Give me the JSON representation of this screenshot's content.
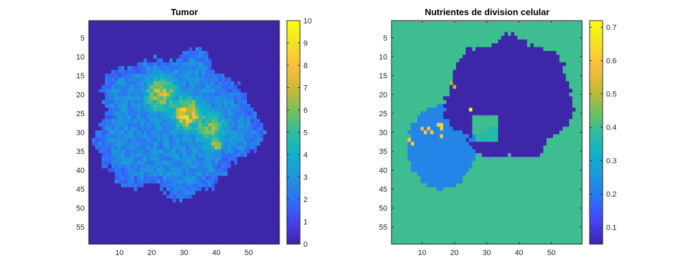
{
  "colors": {
    "background": "#ffffff",
    "axis": "#262626",
    "colormap": [
      "#3e26a8",
      "#4743f8",
      "#2d72f6",
      "#1e96db",
      "#11b0c8",
      "#2dbd9f",
      "#78bf5b",
      "#c9bb35",
      "#fbbc3d",
      "#f4e024",
      "#f9fb0e"
    ]
  },
  "chart_data": [
    {
      "type": "heatmap",
      "title": "Tumor",
      "xlabel": "",
      "ylabel": "",
      "grid_size": 59,
      "x_ticks": [
        10,
        20,
        30,
        40,
        50
      ],
      "y_ticks": [
        5,
        10,
        15,
        20,
        25,
        30,
        35,
        40,
        45,
        50,
        55
      ],
      "xlim": [
        0.5,
        59.5
      ],
      "ylim": [
        0.5,
        59.5
      ],
      "y_direction": "reversed",
      "clim": [
        0,
        10
      ],
      "colorbar_ticks": [
        0,
        1,
        2,
        3,
        4,
        5,
        6,
        7,
        8,
        9,
        10
      ],
      "colormap": "parula",
      "background_value": 0,
      "region": {
        "shape": "irregular blob",
        "center": [
          27,
          28
        ],
        "x_extent": [
          4,
          54
        ],
        "y_extent": [
          9,
          46
        ],
        "typical_value": 3,
        "hotspots": [
          {
            "center": [
              31,
              25
            ],
            "radius": 5,
            "peak": 8.5
          },
          {
            "center": [
              23,
              20
            ],
            "radius": 6,
            "peak": 7
          },
          {
            "center": [
              38,
              29
            ],
            "radius": 6,
            "peak": 6.5
          },
          {
            "center": [
              40,
              33
            ],
            "radius": 2,
            "peak": 8
          }
        ]
      }
    },
    {
      "type": "heatmap",
      "title": "Nutrientes de division celular",
      "xlabel": "",
      "ylabel": "",
      "grid_size": 59,
      "x_ticks": [
        10,
        20,
        30,
        40,
        50
      ],
      "y_ticks": [
        5,
        10,
        15,
        20,
        25,
        30,
        35,
        40,
        45,
        50,
        55
      ],
      "xlim": [
        0.5,
        59.5
      ],
      "ylim": [
        0.5,
        59.5
      ],
      "y_direction": "reversed",
      "clim": [
        0.05,
        0.72
      ],
      "colorbar_ticks": [
        0.1,
        0.2,
        0.3,
        0.4,
        0.5,
        0.6,
        0.7
      ],
      "colormap": "parula",
      "background_value": 0.4,
      "regions": [
        {
          "name": "dark",
          "value": 0.05,
          "center": [
            37,
            21
          ],
          "x_extent": [
            15,
            54
          ],
          "y_extent": [
            8,
            40
          ]
        },
        {
          "name": "light-blue",
          "value": 0.22,
          "center": [
            16,
            34
          ],
          "x_extent": [
            7,
            28
          ],
          "y_extent": [
            24,
            46
          ]
        },
        {
          "name": "green-tint",
          "value": 0.37,
          "center": [
            32,
            33
          ],
          "x_extent": [
            26,
            38
          ],
          "y_extent": [
            29,
            37
          ]
        }
      ],
      "spots": [
        {
          "x": 6,
          "y": 32,
          "value": 0.6
        },
        {
          "x": 7,
          "y": 33,
          "value": 0.6
        },
        {
          "x": 10,
          "y": 29,
          "value": 0.58
        },
        {
          "x": 11,
          "y": 30,
          "value": 0.6
        },
        {
          "x": 12,
          "y": 29,
          "value": 0.6
        },
        {
          "x": 13,
          "y": 30,
          "value": 0.6
        },
        {
          "x": 15,
          "y": 28,
          "value": 0.62
        },
        {
          "x": 16,
          "y": 28,
          "value": 0.62
        },
        {
          "x": 16,
          "y": 29,
          "value": 0.62
        },
        {
          "x": 16,
          "y": 31,
          "value": 0.6
        },
        {
          "x": 25,
          "y": 24,
          "value": 0.7
        },
        {
          "x": 19,
          "y": 17,
          "value": 0.5
        },
        {
          "x": 20,
          "y": 18,
          "value": 0.5
        }
      ]
    }
  ]
}
